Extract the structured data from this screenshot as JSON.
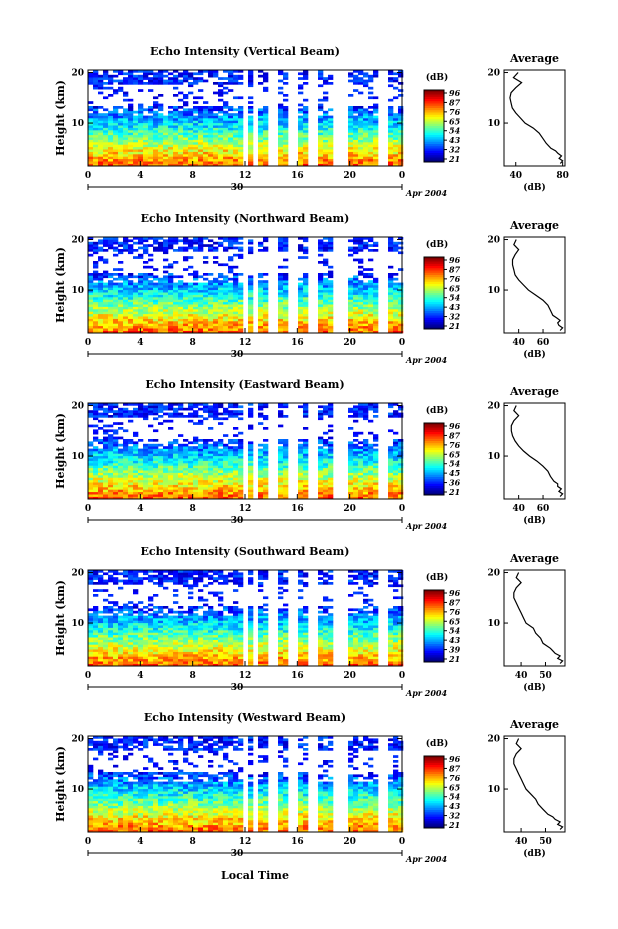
{
  "chart_data": {
    "type": "heatmap",
    "x_axis_label": "Local Time",
    "x_ticks": [
      "0",
      "4",
      "8",
      "12",
      "16",
      "20",
      "0"
    ],
    "date_label": "30",
    "month_label": "Apr 2004",
    "y_axis_label": "Height (km)",
    "y_ticks": [
      "10",
      "20"
    ],
    "colorbar_unit": "(dB)",
    "profile_title": "Average",
    "profile_unit": "(dB)",
    "data_gaps_hours": [
      [
        11.8,
        12.2
      ],
      [
        12.6,
        12.9
      ],
      [
        13.7,
        14.2
      ],
      [
        15.1,
        15.9
      ],
      [
        16.6,
        17.4
      ],
      [
        18.5,
        19.5
      ],
      [
        21.9,
        22.6
      ]
    ],
    "panels": [
      {
        "title": "Echo Intensity (Vertical Beam)",
        "colorbar_labels": [
          "96",
          "87",
          "76",
          "65",
          "54",
          "43",
          "32",
          "21"
        ],
        "profile_ticks": [
          "40",
          "80"
        ],
        "profile_xlim": [
          30,
          82
        ],
        "profile_heights_km": [
          2,
          2.5,
          3,
          3.5,
          4,
          4.5,
          5,
          6,
          7,
          8,
          9,
          10,
          11,
          12,
          13,
          14,
          15,
          16,
          17,
          18,
          19,
          20
        ],
        "profile_db": [
          78,
          80,
          77,
          79,
          76,
          74,
          70,
          66,
          63,
          60,
          55,
          48,
          44,
          40,
          37,
          36,
          35,
          36,
          40,
          45,
          38,
          42
        ]
      },
      {
        "title": "Echo Intensity (Northward Beam)",
        "colorbar_labels": [
          "96",
          "87",
          "76",
          "65",
          "54",
          "43",
          "32",
          "21"
        ],
        "profile_ticks": [
          "40",
          "60"
        ],
        "profile_xlim": [
          28,
          78
        ],
        "profile_heights_km": [
          2,
          2.5,
          3,
          3.5,
          4,
          4.5,
          5,
          6,
          7,
          8,
          9,
          10,
          11,
          12,
          13,
          14,
          15,
          16,
          17,
          18,
          19,
          20
        ],
        "profile_db": [
          74,
          76,
          73,
          72,
          74,
          71,
          68,
          66,
          64,
          60,
          54,
          48,
          44,
          40,
          37,
          36,
          35,
          35,
          37,
          40,
          36,
          38
        ]
      },
      {
        "title": "Echo Intensity (Eastward Beam)",
        "colorbar_labels": [
          "96",
          "87",
          "76",
          "65",
          "54",
          "45",
          "36",
          "21"
        ],
        "profile_ticks": [
          "40",
          "60"
        ],
        "profile_xlim": [
          28,
          78
        ],
        "profile_heights_km": [
          2,
          2.5,
          3,
          3.5,
          4,
          4.5,
          5,
          6,
          7,
          8,
          9,
          10,
          11,
          12,
          13,
          14,
          15,
          16,
          17,
          18,
          19,
          20
        ],
        "profile_db": [
          74,
          76,
          73,
          75,
          72,
          72,
          69,
          66,
          64,
          60,
          55,
          49,
          44,
          40,
          37,
          35,
          34,
          34,
          36,
          40,
          36,
          38
        ]
      },
      {
        "title": "Echo Intensity (Southward Beam)",
        "colorbar_labels": [
          "96",
          "87",
          "76",
          "65",
          "54",
          "43",
          "39",
          "21"
        ],
        "profile_ticks": [
          "40",
          "50"
        ],
        "profile_xlim": [
          33,
          58
        ],
        "profile_heights_km": [
          2,
          2.5,
          3,
          3.5,
          4,
          4.5,
          5,
          6,
          7,
          8,
          9,
          10,
          11,
          12,
          13,
          14,
          15,
          16,
          17,
          18,
          19,
          20
        ],
        "profile_db": [
          56,
          57,
          55,
          56,
          54,
          53,
          52,
          49,
          48,
          46,
          45,
          42,
          41,
          40,
          39,
          38,
          37,
          37,
          38,
          40,
          38,
          39
        ]
      },
      {
        "title": "Echo Intensity (Westward Beam)",
        "colorbar_labels": [
          "96",
          "87",
          "76",
          "65",
          "54",
          "43",
          "32",
          "21"
        ],
        "profile_ticks": [
          "40",
          "50"
        ],
        "profile_xlim": [
          33,
          58
        ],
        "profile_heights_km": [
          2,
          2.5,
          3,
          3.5,
          4,
          4.5,
          5,
          6,
          7,
          8,
          9,
          10,
          11,
          12,
          13,
          14,
          15,
          16,
          17,
          18,
          19,
          20
        ],
        "profile_db": [
          56,
          57,
          55,
          56,
          54,
          53,
          51,
          49,
          47,
          46,
          44,
          42,
          41,
          40,
          39,
          38,
          37,
          37,
          38,
          40,
          38,
          39
        ]
      }
    ]
  }
}
